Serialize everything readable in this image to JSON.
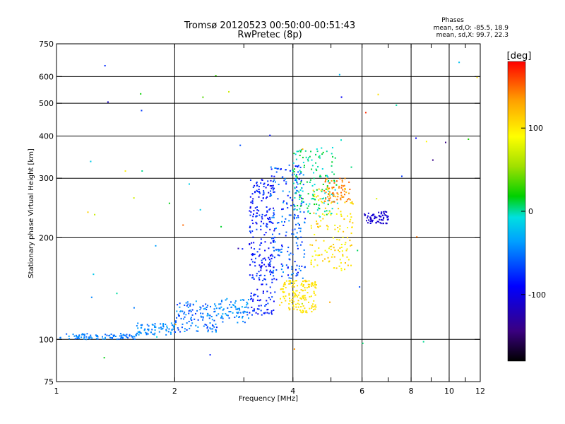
{
  "chart_data": {
    "type": "scatter",
    "title": "Tromsø 20120523 00:50:00-00:51:43",
    "subtitle": "RwPretec (8p)",
    "xlabel": "Frequency [MHz]",
    "ylabel": "Stationary phase Virtual Height [km]",
    "x_scale": "log",
    "y_scale": "log",
    "xlim": [
      1,
      12
    ],
    "ylim": [
      75,
      750
    ],
    "x_ticks": [
      1,
      2,
      4,
      6,
      8,
      10,
      12
    ],
    "x_tick_labels": [
      "1",
      "2",
      "4",
      "6",
      "8",
      "10",
      "12"
    ],
    "y_ticks": [
      75,
      100,
      200,
      300,
      400,
      500,
      600,
      750
    ],
    "y_tick_labels": [
      "75",
      "100",
      "200",
      "300",
      "400",
      "500",
      "600",
      "750"
    ],
    "grid": true,
    "phases_stats": {
      "heading": "Phases",
      "line1": "mean, sd,O: -85.5, 18.9",
      "line2": "mean, sd,X:  99.7, 22.3"
    },
    "colorbar": {
      "label": "[deg]",
      "range": [
        -180,
        180
      ],
      "ticks": [
        100,
        0,
        -100
      ],
      "tick_labels": [
        "100",
        "0",
        "-100"
      ],
      "colormap": [
        "#000000",
        "#3a0080",
        "#0000ff",
        "#00a0ff",
        "#00e0e0",
        "#00d000",
        "#a0e000",
        "#ffff00",
        "#ffa000",
        "#ff0000"
      ]
    },
    "clusters": [
      {
        "x0": 1.02,
        "x1": 1.6,
        "y0": 100,
        "y1": 104,
        "n": 90,
        "ph": [
          -80,
          -60
        ]
      },
      {
        "x0": 1.6,
        "x1": 2.0,
        "y0": 103,
        "y1": 112,
        "n": 70,
        "ph": [
          -75,
          -55
        ]
      },
      {
        "x0": 2.0,
        "x1": 2.6,
        "y0": 105,
        "y1": 130,
        "n": 120,
        "ph": [
          -90,
          -55
        ]
      },
      {
        "x0": 2.6,
        "x1": 3.1,
        "y0": 112,
        "y1": 132,
        "n": 70,
        "ph": [
          -80,
          -50
        ]
      },
      {
        "x0": 3.1,
        "x1": 3.6,
        "y0": 118,
        "y1": 300,
        "n": 260,
        "ph": [
          -110,
          -80
        ]
      },
      {
        "x0": 3.5,
        "x1": 4.3,
        "y0": 150,
        "y1": 330,
        "n": 200,
        "ph": [
          -100,
          -60
        ]
      },
      {
        "x0": 3.7,
        "x1": 4.6,
        "y0": 120,
        "y1": 150,
        "n": 150,
        "ph": [
          105,
          120
        ]
      },
      {
        "x0": 4.0,
        "x1": 5.2,
        "y0": 230,
        "y1": 370,
        "n": 150,
        "ph": [
          -30,
          20
        ]
      },
      {
        "x0": 4.4,
        "x1": 5.7,
        "y0": 160,
        "y1": 280,
        "n": 140,
        "ph": [
          90,
          130
        ]
      },
      {
        "x0": 4.8,
        "x1": 5.6,
        "y0": 255,
        "y1": 300,
        "n": 60,
        "ph": [
          140,
          160
        ]
      },
      {
        "x0": 6.1,
        "x1": 7.0,
        "y0": 220,
        "y1": 240,
        "n": 70,
        "ph": [
          -120,
          -110
        ]
      },
      {
        "x0": 1.2,
        "x1": 11.8,
        "y0": 85,
        "y1": 680,
        "n": 60,
        "ph": [
          -140,
          170
        ]
      }
    ]
  }
}
